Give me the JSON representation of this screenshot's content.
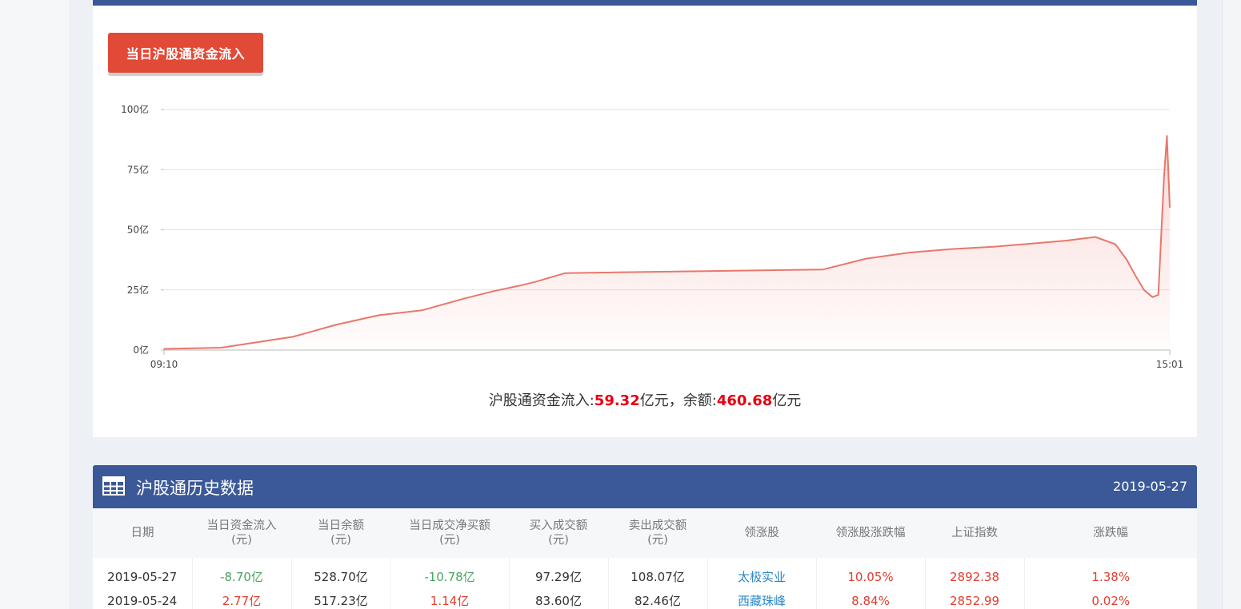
{
  "tab": {
    "label": "当日沪股通资金流入"
  },
  "chart_data": {
    "type": "area",
    "y_ticks": [
      "100亿",
      "75亿",
      "50亿",
      "25亿",
      "0亿"
    ],
    "y_tick_values": [
      100,
      75,
      50,
      25,
      0
    ],
    "ylim": [
      0,
      100
    ],
    "x_tick_labels": [
      "09:10",
      "15:01"
    ],
    "xlim": [
      "09:10",
      "15:01"
    ],
    "line_color": "#e8776b",
    "grid": true,
    "series": [
      {
        "x": [
          "09:10",
          "09:30",
          "09:55",
          "10:10",
          "10:25",
          "10:40",
          "10:55",
          "11:05",
          "11:15",
          "11:20",
          "11:30",
          "13:00",
          "13:15",
          "13:30",
          "13:45",
          "14:00",
          "14:15",
          "14:25",
          "14:35",
          "14:42",
          "14:46",
          "14:49",
          "14:52",
          "14:55",
          "14:57",
          "14:59",
          "15:00",
          "15:01"
        ],
        "values": [
          0.5,
          1.0,
          5.5,
          10.5,
          14.5,
          16.5,
          21.5,
          24.5,
          27.0,
          28.5,
          32.0,
          33.5,
          38.0,
          40.5,
          42.0,
          43.0,
          44.5,
          45.5,
          47.0,
          44.0,
          37.5,
          31.0,
          25.0,
          22.0,
          23.0,
          72.0,
          89.0,
          59.32
        ]
      }
    ]
  },
  "summary": {
    "prefix": "沪股通资金流入:",
    "inflow": "59.32",
    "mid": "亿元，余额:",
    "balance": "460.68",
    "suffix": "亿元"
  },
  "history": {
    "title": "沪股通历史数据",
    "date": "2019-05-27",
    "columns": [
      [
        "日期"
      ],
      [
        "当日资金流入",
        "(元)"
      ],
      [
        "当日余额",
        "(元)"
      ],
      [
        "当日成交净买额",
        "(元)"
      ],
      [
        "买入成交额",
        "(元)"
      ],
      [
        "卖出成交额",
        "(元)"
      ],
      [
        "领涨股"
      ],
      [
        "领涨股涨跌幅"
      ],
      [
        "上证指数"
      ],
      [
        "涨跌幅"
      ]
    ],
    "rows": [
      [
        "2019-05-27",
        "-8.70亿",
        "528.70亿",
        "-10.78亿",
        "97.29亿",
        "108.07亿",
        "太极实业",
        "10.05%",
        "2892.38",
        "1.38%"
      ],
      [
        "2019-05-24",
        "2.77亿",
        "517.23亿",
        "1.14亿",
        "83.60亿",
        "82.46亿",
        "西藏珠峰",
        "8.84%",
        "2852.99",
        "0.02%"
      ]
    ],
    "row_classes": [
      [
        "",
        "neg",
        "",
        "neg",
        "",
        "",
        "link",
        "pos",
        "pos",
        "pos"
      ],
      [
        "",
        "pos",
        "",
        "pos",
        "",
        "",
        "link",
        "pos",
        "pos",
        "pos"
      ]
    ]
  }
}
